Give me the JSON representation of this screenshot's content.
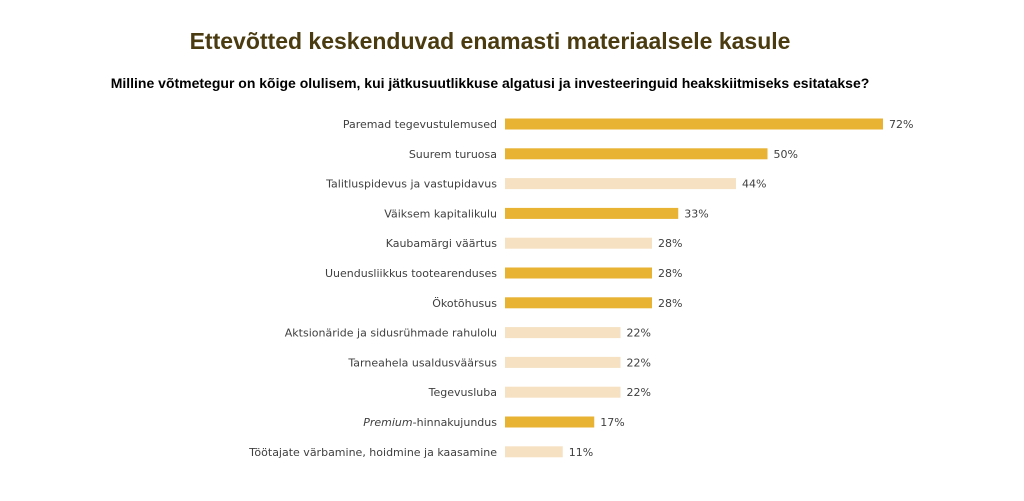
{
  "title": "Ettevõtted keskenduvad enamasti materiaalsele kasule",
  "subtitle": "Milline võtmetegur on kõige olulisem, kui jätkusuutlikkuse algatusi ja investeeringuid heakskiitmiseks esitatakse?",
  "colors": {
    "dark": "#e8b233",
    "light": "#f6e2c3"
  },
  "chart_data": {
    "type": "bar",
    "orientation": "horizontal",
    "categories": [
      "Paremad tegevustulemused",
      "Suurem turuosa",
      "Talitluspidevus ja vastupidavus",
      "Väiksem kapitalikulu",
      "Kaubamärgi väärtus",
      "Uuendusliikkus tootearenduses",
      "Ökotõhusus",
      "Aktsionäride ja sidusrühmade rahulolu",
      "Tarneahela usaldusväärsus",
      "Tegevusluba",
      "Premium-hinnakujundus",
      "Töötajate värbamine, hoidmine ja kaasamine"
    ],
    "values": [
      72,
      50,
      44,
      33,
      28,
      28,
      28,
      22,
      22,
      22,
      17,
      11
    ],
    "value_labels": [
      "72%",
      "50%",
      "44%",
      "33%",
      "28%",
      "28%",
      "28%",
      "22%",
      "22%",
      "22%",
      "17%",
      "11%"
    ],
    "highlight": [
      true,
      true,
      false,
      true,
      false,
      true,
      true,
      false,
      false,
      false,
      true,
      false
    ],
    "xlim": [
      0,
      100
    ],
    "grid": false,
    "legend": "none",
    "title": "Ettevõtted keskenduvad enamasti materiaalsele kasule",
    "xlabel": "",
    "ylabel": ""
  }
}
